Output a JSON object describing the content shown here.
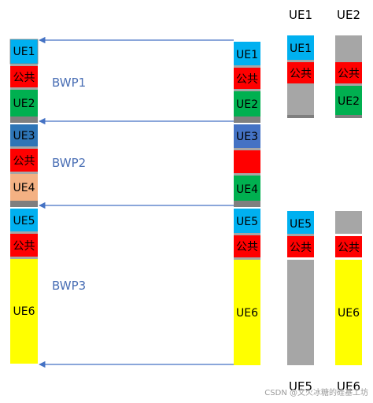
{
  "colors": {
    "ue_blue": "#00b0f0",
    "common_red": "#ff0000",
    "ue_green": "#00b050",
    "ue3_blue": "#2e75b6",
    "ue3_right_blue": "#4472c4",
    "ue4_orange": "#f4b183",
    "ue6_yellow": "#ffff00",
    "gap_gray": "#a6a6a6",
    "divider_gray": "#7f7f7f",
    "arrow_blue": "#4472c4"
  },
  "bwps": [
    "BWP1",
    "BWP2",
    "BWP3"
  ],
  "column_headers": {
    "ue1": "UE1",
    "ue2": "UE2",
    "ue5": "UE5",
    "ue6": "UE6"
  },
  "block_labels": {
    "ue1": "UE1",
    "common": "公共",
    "ue2": "UE2",
    "ue3": "UE3",
    "ue4": "UE4",
    "ue5": "UE5",
    "ue6": "UE6"
  },
  "watermark": "CSDN @文火冰糖的硅基工坊"
}
